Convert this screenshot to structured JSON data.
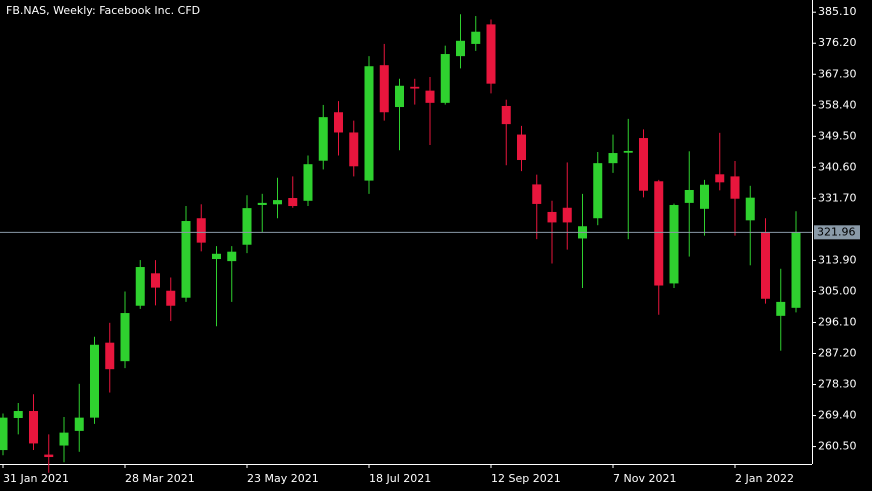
{
  "chart_data": {
    "type": "candlestick",
    "title": "FB.NAS, Weekly:  Facebook Inc. CFD",
    "categories": [
      "31 Jan 2021",
      null,
      null,
      null,
      null,
      null,
      null,
      null,
      "28 Mar 2021",
      null,
      null,
      null,
      null,
      null,
      null,
      null,
      "23 May 2021",
      null,
      null,
      null,
      null,
      null,
      null,
      null,
      "18 Jul 2021",
      null,
      null,
      null,
      null,
      null,
      null,
      null,
      "12 Sep 2021",
      null,
      null,
      null,
      null,
      null,
      null,
      null,
      "7 Nov 2021",
      null,
      null,
      null,
      null,
      null,
      null,
      null,
      "2 Jan 2022",
      null,
      null,
      null,
      null
    ],
    "open": [
      259.5,
      268.7,
      270.7,
      258.2,
      260.8,
      265.0,
      268.8,
      290.3,
      285.0,
      300.9,
      310.2,
      305.2,
      303.2,
      326.0,
      314.3,
      313.7,
      318.4,
      329.8,
      330.0,
      331.8,
      331.0,
      342.5,
      356.4,
      350.6,
      336.8,
      369.9,
      357.9,
      363.7,
      362.6,
      359.1,
      372.5,
      376.0,
      381.6,
      358.2,
      350.0,
      335.7,
      327.8,
      329.0,
      320.2,
      326.0,
      341.8,
      344.8,
      349.0,
      336.6,
      307.3,
      330.4,
      328.7,
      338.6,
      338.0,
      325.4,
      321.9,
      298.0,
      300.3
    ],
    "high": [
      270.0,
      273.0,
      275.5,
      264.0,
      269.0,
      278.5,
      292.0,
      296.0,
      305.0,
      314.0,
      314.0,
      309.0,
      329.5,
      330.0,
      318.0,
      318.0,
      332.6,
      333.0,
      337.6,
      338.0,
      344.0,
      358.5,
      359.6,
      354.0,
      372.5,
      376.0,
      366.0,
      366.0,
      366.5,
      375.5,
      384.5,
      384.0,
      383.0,
      360.0,
      352.5,
      338.5,
      331.0,
      342.0,
      333.0,
      345.0,
      350.0,
      354.5,
      351.5,
      337.0,
      330.2,
      345.2,
      337.0,
      350.5,
      342.4,
      335.3,
      326.0,
      311.5,
      328.0
    ],
    "low": [
      258.0,
      264.0,
      259.5,
      253.0,
      256.0,
      259.0,
      267.0,
      276.0,
      283.0,
      300.0,
      301.0,
      296.5,
      302.0,
      316.5,
      295.0,
      302.0,
      316.0,
      322.0,
      326.0,
      329.0,
      329.5,
      340.0,
      344.0,
      338.0,
      333.0,
      354.0,
      345.5,
      358.6,
      347.0,
      358.6,
      369.0,
      374.0,
      361.8,
      341.2,
      339.5,
      320.0,
      313.0,
      317.0,
      306.0,
      324.0,
      339.0,
      320.0,
      332.0,
      298.3,
      306.0,
      315.0,
      321.0,
      334.0,
      321.0,
      312.5,
      301.5,
      288.0,
      299.0
    ],
    "close": [
      268.8,
      270.7,
      261.4,
      257.5,
      264.5,
      268.8,
      289.7,
      282.7,
      298.8,
      312.0,
      306.1,
      300.9,
      325.2,
      319.0,
      315.8,
      316.4,
      328.9,
      330.4,
      331.2,
      329.5,
      341.5,
      355.0,
      350.6,
      340.9,
      369.6,
      356.4,
      364.0,
      363.2,
      359.1,
      373.1,
      376.9,
      379.5,
      364.6,
      353.0,
      342.7,
      330.1,
      324.8,
      324.8,
      323.7,
      341.8,
      344.7,
      345.3,
      333.9,
      306.7,
      329.8,
      334.1,
      335.6,
      336.3,
      331.6,
      331.9,
      302.9,
      302.0,
      321.96
    ],
    "up_color": "#2fd12f",
    "down_color": "#e8163d",
    "current_price": 321.96,
    "ylim": [
      255.5,
      388.6
    ],
    "yticks": [
      {
        "value": 260.5,
        "label": "260.50"
      },
      {
        "value": 269.4,
        "label": "269.40"
      },
      {
        "value": 278.3,
        "label": "278.30"
      },
      {
        "value": 287.2,
        "label": "287.20"
      },
      {
        "value": 296.1,
        "label": "296.10"
      },
      {
        "value": 305.0,
        "label": "305.00"
      },
      {
        "value": 313.9,
        "label": "313.90"
      },
      {
        "value": 331.7,
        "label": "331.70"
      },
      {
        "value": 340.6,
        "label": "340.60"
      },
      {
        "value": 349.5,
        "label": "349.50"
      },
      {
        "value": 358.4,
        "label": "358.40"
      },
      {
        "value": 367.3,
        "label": "367.30"
      },
      {
        "value": 376.2,
        "label": "376.20"
      },
      {
        "value": 385.1,
        "label": "385.10"
      }
    ]
  }
}
